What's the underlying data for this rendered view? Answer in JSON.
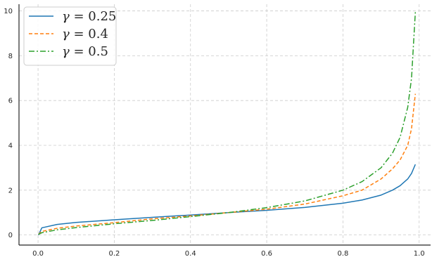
{
  "chart_data": {
    "type": "line",
    "title": "",
    "xlabel": "",
    "ylabel": "",
    "xlim": [
      -0.05,
      1.03
    ],
    "ylim": [
      -0.45,
      10.3
    ],
    "x_ticks": [
      0.0,
      0.2,
      0.4,
      0.6,
      0.8,
      1.0
    ],
    "x_tick_labels": [
      "0.0",
      "0.2",
      "0.4",
      "0.6",
      "0.8",
      "1.0"
    ],
    "y_ticks": [
      0,
      2,
      4,
      6,
      8,
      10
    ],
    "y_tick_labels": [
      "0",
      "2",
      "4",
      "6",
      "8",
      "10"
    ],
    "grid": true,
    "legend_position": "top-left",
    "series": [
      {
        "name": "γ = 0.25",
        "legend_symbol": "γ",
        "legend_value": "= 0.25",
        "color": "#1f77b4",
        "style": "solid",
        "x": [
          0.001,
          0.01,
          0.05,
          0.1,
          0.2,
          0.3,
          0.4,
          0.5,
          0.6,
          0.7,
          0.8,
          0.85,
          0.9,
          0.93,
          0.95,
          0.97,
          0.98,
          0.99
        ],
        "y": [
          0.0,
          0.32,
          0.47,
          0.56,
          0.68,
          0.79,
          0.89,
          1.0,
          1.1,
          1.23,
          1.42,
          1.56,
          1.78,
          2.0,
          2.2,
          2.5,
          2.75,
          3.15
        ]
      },
      {
        "name": "γ = 0.4",
        "legend_symbol": "γ",
        "legend_value": "= 0.4",
        "color": "#ff7f0e",
        "style": "dashed",
        "x": [
          0.001,
          0.01,
          0.05,
          0.1,
          0.2,
          0.3,
          0.4,
          0.5,
          0.6,
          0.7,
          0.8,
          0.85,
          0.9,
          0.93,
          0.95,
          0.97,
          0.98,
          0.99
        ],
        "y": [
          0.03,
          0.16,
          0.3,
          0.4,
          0.55,
          0.72,
          0.85,
          1.0,
          1.15,
          1.38,
          1.75,
          2.0,
          2.5,
          2.95,
          3.35,
          4.0,
          4.75,
          6.3
        ]
      },
      {
        "name": "γ = 0.5",
        "legend_symbol": "γ",
        "legend_value": "= 0.5",
        "color": "#2ca02c",
        "style": "dashdot",
        "x": [
          0.001,
          0.01,
          0.05,
          0.1,
          0.2,
          0.3,
          0.4,
          0.5,
          0.6,
          0.7,
          0.8,
          0.85,
          0.9,
          0.93,
          0.95,
          0.97,
          0.98,
          0.99
        ],
        "y": [
          0.03,
          0.1,
          0.23,
          0.33,
          0.5,
          0.65,
          0.82,
          1.0,
          1.22,
          1.52,
          2.0,
          2.38,
          3.0,
          3.65,
          4.36,
          5.7,
          7.0,
          9.95
        ]
      }
    ]
  }
}
